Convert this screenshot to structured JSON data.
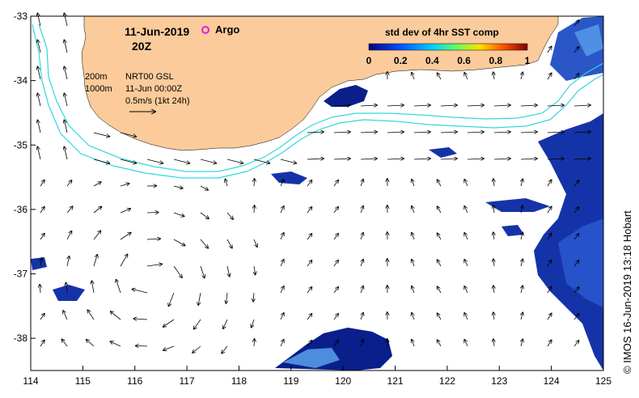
{
  "title": {
    "date": "11-Jun-2019",
    "time": "20Z",
    "argo_label": "Argo"
  },
  "colorbar": {
    "title": "std dev of 4hr SST comp",
    "ticks": [
      "0",
      "0.2",
      "0.4",
      "0.6",
      "0.8",
      "1"
    ],
    "min": 0,
    "max": 1
  },
  "info": {
    "contour1_label": "200m",
    "contour2_label": "1000m",
    "product": "NRT00 GSL",
    "product_time": "11-Jun 00:00Z",
    "scale": "0.5m/s (1kt 24h)"
  },
  "credit": "© IMOS 16-Jun-2019 13:18 Hobart",
  "axes": {
    "x_ticks": [
      "114",
      "115",
      "116",
      "117",
      "118",
      "119",
      "120",
      "121",
      "122",
      "123",
      "124",
      "125"
    ],
    "y_ticks": [
      "-33",
      "-34",
      "-35",
      "-36",
      "-37",
      "-38"
    ],
    "x_range": [
      114,
      125
    ],
    "y_range": [
      -33,
      -38.5
    ]
  },
  "colors": {
    "land": "#FBCB9B",
    "shelf_line": "#33D6E0",
    "sst_dark": "#0A1F8C",
    "sst_mid": "#2E5FD8",
    "sst_light": "#5FA8F0",
    "argo": "#E020E0"
  }
}
